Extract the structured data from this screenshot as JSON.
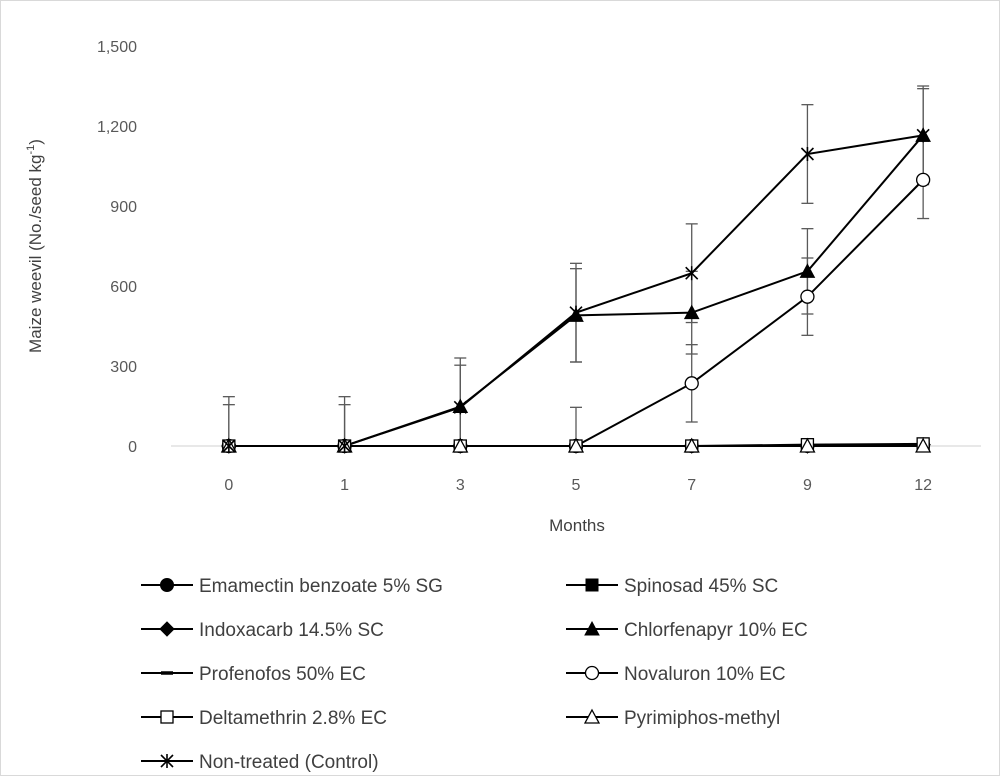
{
  "chart_data": {
    "type": "line",
    "title": "",
    "xlabel": "Months",
    "ylabel": {
      "main": "Maize weevil (No./seed kg",
      "sup": "-1",
      "tail": ")"
    },
    "categories": [
      "0",
      "1",
      "3",
      "5",
      "7",
      "9",
      "12"
    ],
    "y_ticks": [
      "0",
      "300",
      "600",
      "900",
      "1,200",
      "1,500"
    ],
    "y_tick_values": [
      0,
      300,
      600,
      900,
      1200,
      1500
    ],
    "ylim": [
      0,
      1500
    ],
    "grid": false,
    "legend_position": "bottom",
    "series": [
      {
        "name": "Emamectin benzoate 5% SG",
        "marker": "filled-circle",
        "color": "#000000",
        "values": [
          0,
          0,
          0,
          0,
          0,
          0,
          3
        ],
        "error": [
          0,
          0,
          0,
          0,
          0,
          0,
          0
        ]
      },
      {
        "name": "Spinosad 45% SC",
        "marker": "filled-square",
        "color": "#000000",
        "values": [
          0,
          0,
          0,
          0,
          0,
          0,
          3
        ],
        "error": [
          0,
          0,
          0,
          0,
          0,
          0,
          0
        ]
      },
      {
        "name": "Indoxacarb 14.5% SC",
        "marker": "filled-diamond",
        "color": "#000000",
        "values": [
          0,
          0,
          0,
          0,
          0,
          0,
          5
        ],
        "error": [
          0,
          0,
          0,
          0,
          0,
          0,
          0
        ]
      },
      {
        "name": "Chlorfenapyr 10% EC",
        "marker": "filled-triangle",
        "color": "#000000",
        "values": [
          0,
          0,
          148,
          490,
          500,
          655,
          1165
        ],
        "error": [
          155,
          155,
          155,
          175,
          155,
          160,
          175
        ]
      },
      {
        "name": "Profenofos 50% EC",
        "marker": "dash",
        "color": "#000000",
        "values": [
          0,
          0,
          0,
          0,
          0,
          0,
          0
        ],
        "error": [
          0,
          0,
          0,
          0,
          0,
          0,
          0
        ]
      },
      {
        "name": "Novaluron 10% EC",
        "marker": "open-circle",
        "color": "#000000",
        "values": [
          0,
          0,
          0,
          0,
          235,
          560,
          998
        ],
        "error": [
          0,
          0,
          0,
          145,
          145,
          145,
          145
        ]
      },
      {
        "name": "Deltamethrin 2.8% EC",
        "marker": "open-square",
        "color": "#000000",
        "values": [
          0,
          0,
          0,
          0,
          0,
          5,
          8
        ],
        "error": [
          0,
          0,
          0,
          0,
          0,
          0,
          0
        ]
      },
      {
        "name": "Pyrimiphos-methyl",
        "marker": "open-triangle",
        "color": "#000000",
        "values": [
          0,
          0,
          0,
          0,
          0,
          0,
          0
        ],
        "error": [
          0,
          0,
          0,
          0,
          0,
          0,
          0
        ]
      },
      {
        "name": "Non-treated (Control)",
        "marker": "star",
        "color": "#000000",
        "values": [
          0,
          0,
          145,
          500,
          648,
          1095,
          1165
        ],
        "error": [
          185,
          185,
          185,
          185,
          185,
          185,
          185
        ]
      }
    ]
  }
}
